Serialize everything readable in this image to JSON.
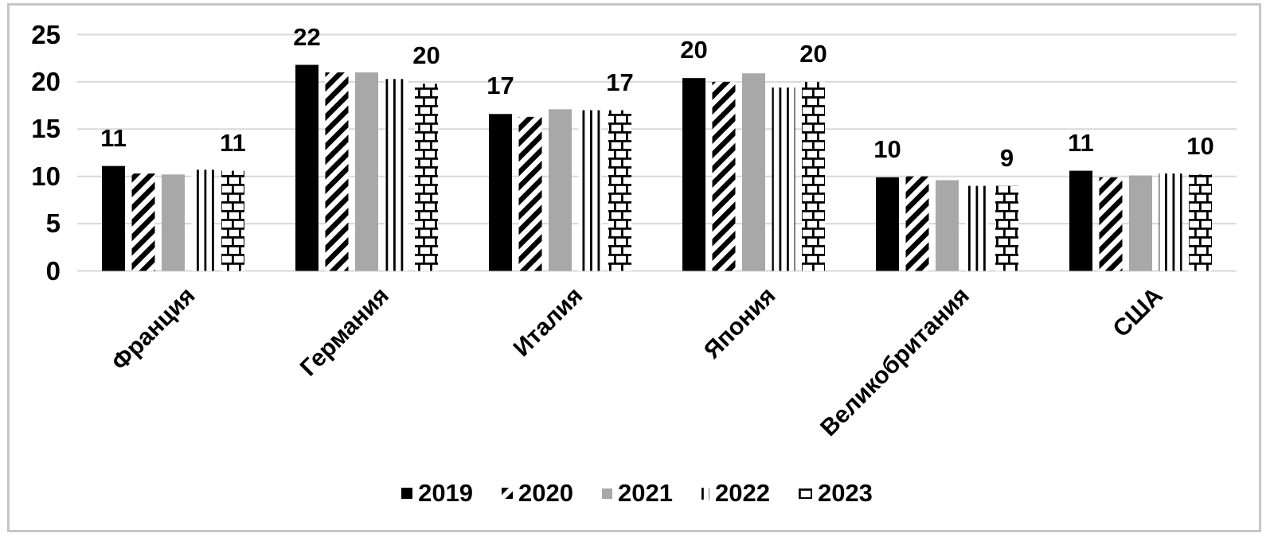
{
  "chart_data": {
    "type": "bar",
    "title": "",
    "xlabel": "",
    "ylabel": "",
    "categories": [
      "Франция",
      "Германия",
      "Италия",
      "Япония",
      "Великобритания",
      "США"
    ],
    "series": [
      {
        "name": "2019",
        "pattern": "solid-black",
        "values": [
          11.1,
          21.8,
          16.6,
          20.4,
          9.9,
          10.6
        ],
        "data_labels": [
          "11",
          "22",
          "17",
          "20",
          "10",
          "11"
        ]
      },
      {
        "name": "2020",
        "pattern": "diagonal-stripes",
        "values": [
          10.3,
          21.0,
          16.3,
          20.0,
          10.0,
          9.9
        ]
      },
      {
        "name": "2021",
        "pattern": "solid-gray",
        "values": [
          10.2,
          21.0,
          17.1,
          20.9,
          9.6,
          10.1
        ]
      },
      {
        "name": "2022",
        "pattern": "vertical-lines",
        "values": [
          10.7,
          20.3,
          17.0,
          19.4,
          9.0,
          10.3
        ]
      },
      {
        "name": "2023",
        "pattern": "brick",
        "values": [
          10.6,
          19.8,
          17.0,
          20.0,
          9.0,
          10.2
        ],
        "data_labels": [
          "11",
          "20",
          "17",
          "20",
          "9",
          "10"
        ]
      }
    ],
    "y_axis": {
      "min": 0,
      "max": 25,
      "ticks": [
        0,
        5,
        10,
        15,
        20,
        25
      ]
    },
    "grid": true,
    "legend_position": "bottom",
    "colors": {
      "bar_black": "#000000",
      "bar_gray": "#a8a8a8",
      "pattern_ink": "#000000",
      "pattern_bg": "#ffffff",
      "gridline": "#d8d8d8",
      "frame_border": "#c6c6c6",
      "text": "#000000"
    }
  }
}
